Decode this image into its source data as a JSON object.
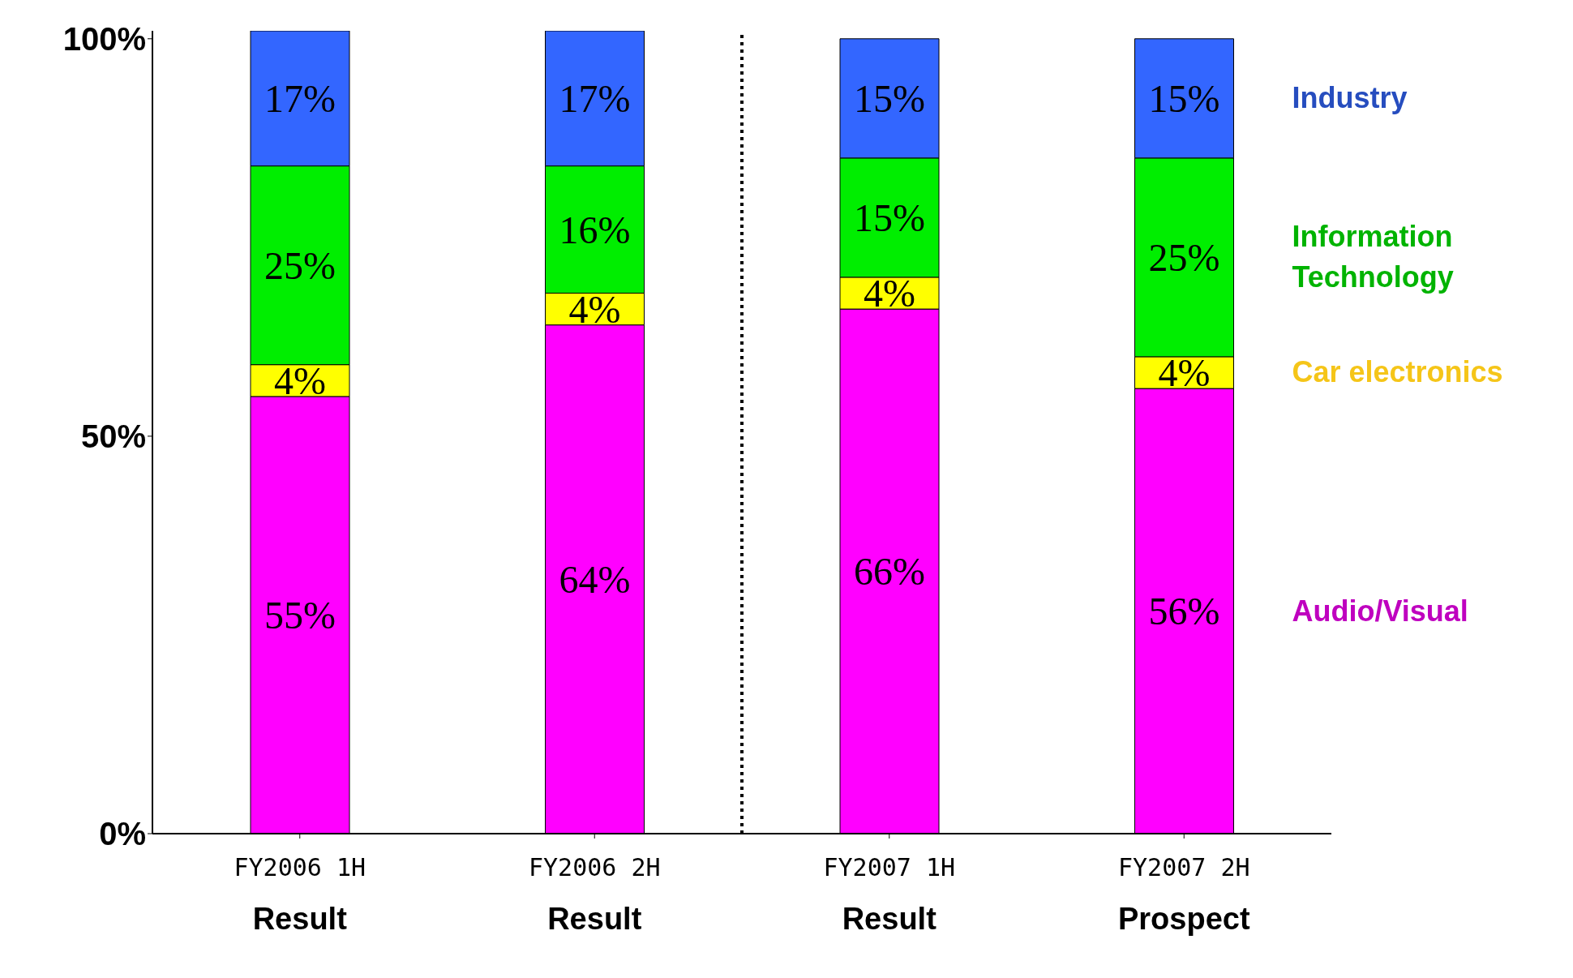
{
  "chart_data": {
    "type": "bar",
    "stacked": true,
    "categories": [
      "FY2006 1H\nResult",
      "FY2006 2H\nResult",
      "FY2007 1H\nResult",
      "FY2007 2H\nProspect"
    ],
    "series": [
      {
        "name": "Audio/Visual",
        "color": "#ff00ff",
        "values": [
          55,
          64,
          66,
          56
        ],
        "value_labels": [
          "55%",
          "64%",
          "66%",
          "56%"
        ]
      },
      {
        "name": "Car electronics",
        "color": "#ffff00",
        "values": [
          4,
          4,
          4,
          4
        ],
        "value_labels": [
          "4%",
          "4%",
          "4%",
          "4%"
        ]
      },
      {
        "name": "Information\nTechnology",
        "color": "#00ee00",
        "values": [
          25,
          16,
          15,
          25
        ],
        "value_labels": [
          "25%",
          "16%",
          "15%",
          "25%"
        ]
      },
      {
        "name": "Industry",
        "color": "#3366ff",
        "values": [
          17,
          17,
          15,
          15
        ],
        "value_labels": [
          "17%",
          "17%",
          "15%",
          "15%"
        ]
      }
    ],
    "ylim": [
      0,
      101
    ],
    "yticks": [
      {
        "value": 0,
        "label": "0%"
      },
      {
        "value": 50,
        "label": "50%"
      },
      {
        "value": 100,
        "label": "100%"
      }
    ],
    "legend": "right"
  }
}
